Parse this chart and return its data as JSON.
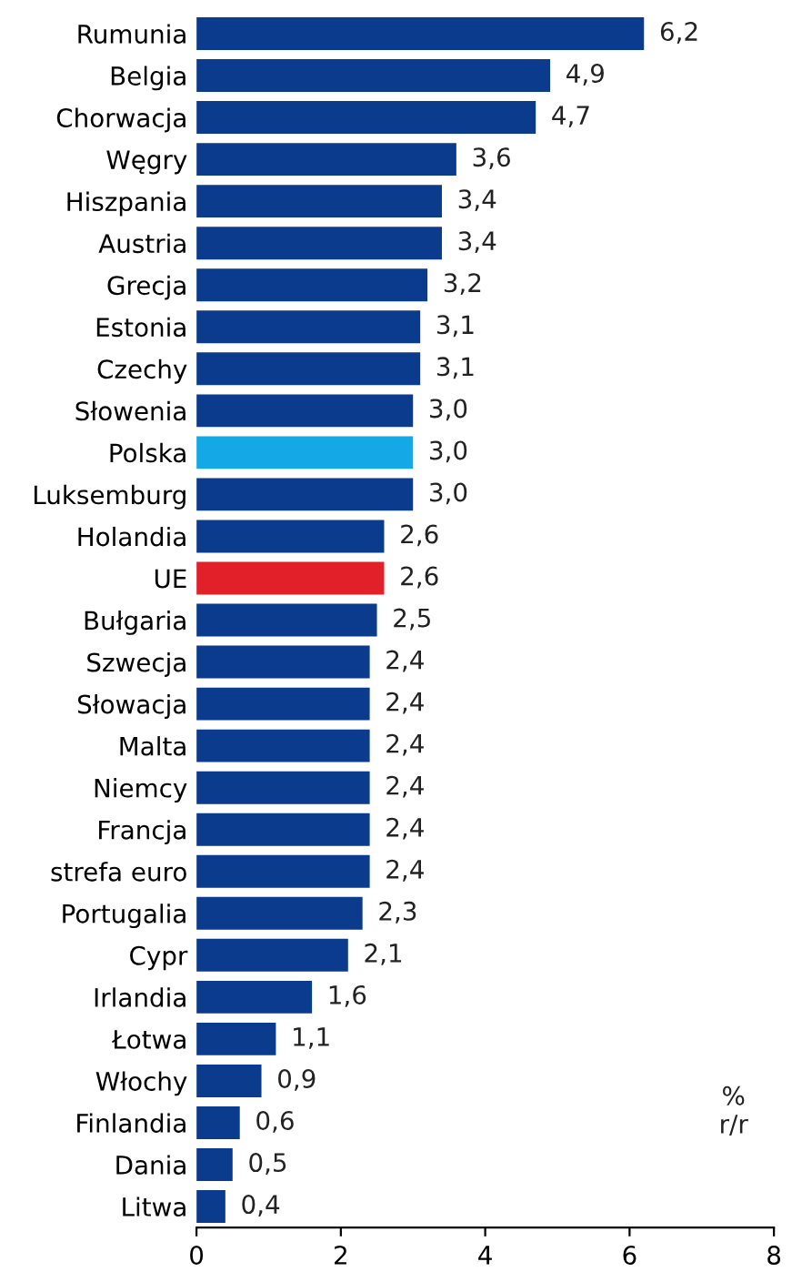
{
  "chart_data": {
    "type": "bar",
    "orientation": "horizontal",
    "categories": [
      "Rumunia",
      "Belgia",
      "Chorwacja",
      "Węgry",
      "Hiszpania",
      "Austria",
      "Grecja",
      "Estonia",
      "Czechy",
      "Słowenia",
      "Polska",
      "Luksemburg",
      "Holandia",
      "UE",
      "Bułgaria",
      "Szwecja",
      "Słowacja",
      "Malta",
      "Niemcy",
      "Francja",
      "strefa euro",
      "Portugalia",
      "Cypr",
      "Irlandia",
      "Łotwa",
      "Włochy",
      "Finlandia",
      "Dania",
      "Litwa"
    ],
    "values": [
      6.2,
      4.9,
      4.7,
      3.6,
      3.4,
      3.4,
      3.2,
      3.1,
      3.1,
      3.0,
      3.0,
      3.0,
      2.6,
      2.6,
      2.5,
      2.4,
      2.4,
      2.4,
      2.4,
      2.4,
      2.4,
      2.3,
      2.1,
      1.6,
      1.1,
      0.9,
      0.6,
      0.5,
      0.4
    ],
    "value_labels": [
      "6,2",
      "4,9",
      "4,7",
      "3,6",
      "3,4",
      "3,4",
      "3,2",
      "3,1",
      "3,1",
      "3,0",
      "3,0",
      "3,0",
      "2,6",
      "2,6",
      "2,5",
      "2,4",
      "2,4",
      "2,4",
      "2,4",
      "2,4",
      "2,4",
      "2,3",
      "2,1",
      "1,6",
      "1,1",
      "0,9",
      "0,6",
      "0,5",
      "0,4"
    ],
    "colors": [
      "#0b3b8c",
      "#0b3b8c",
      "#0b3b8c",
      "#0b3b8c",
      "#0b3b8c",
      "#0b3b8c",
      "#0b3b8c",
      "#0b3b8c",
      "#0b3b8c",
      "#0b3b8c",
      "#14a9e6",
      "#0b3b8c",
      "#0b3b8c",
      "#e1202a",
      "#0b3b8c",
      "#0b3b8c",
      "#0b3b8c",
      "#0b3b8c",
      "#0b3b8c",
      "#0b3b8c",
      "#0b3b8c",
      "#0b3b8c",
      "#0b3b8c",
      "#0b3b8c",
      "#0b3b8c",
      "#0b3b8c",
      "#0b3b8c",
      "#0b3b8c",
      "#0b3b8c"
    ],
    "xlim": [
      0,
      8
    ],
    "xticks": [
      0,
      2,
      4,
      6,
      8
    ],
    "grid": false,
    "legend": false,
    "annotations": [
      "%\nr/r"
    ]
  }
}
